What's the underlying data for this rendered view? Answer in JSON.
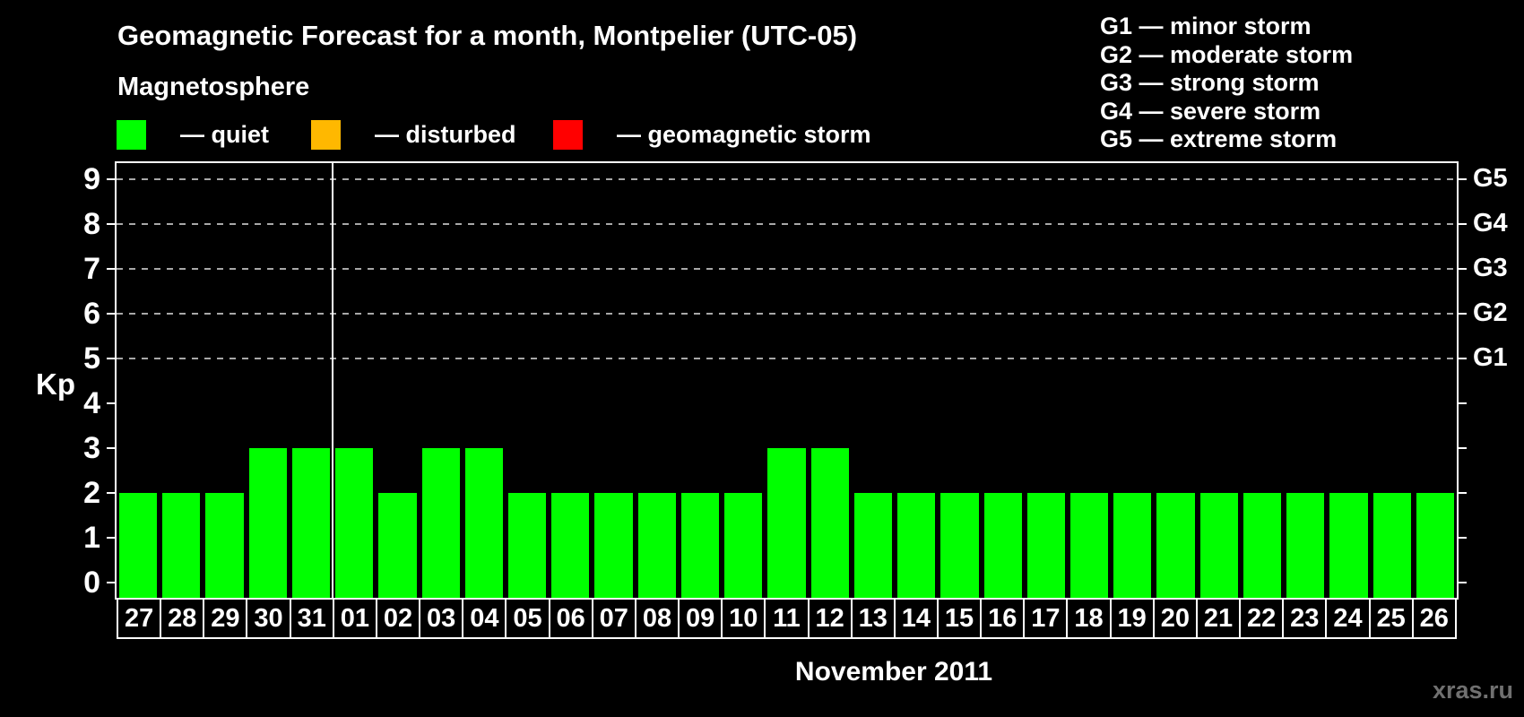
{
  "title": "Geomagnetic Forecast for a month, Montpelier (UTC-05)",
  "subtitle": "Magnetosphere",
  "legend": {
    "items": [
      {
        "name": "quiet",
        "label": "— quiet",
        "color": "#00ff00"
      },
      {
        "name": "disturbed",
        "label": "— disturbed",
        "color": "#ffb800"
      },
      {
        "name": "geomagnetic-storm",
        "label": "— geomagnetic storm",
        "color": "#ff0000"
      }
    ]
  },
  "g_legend": {
    "items": [
      "G1 — minor storm",
      "G2 — moderate storm",
      "G3 — strong storm",
      "G4 — severe storm",
      "G5 — extreme storm"
    ]
  },
  "axis": {
    "kp_label": "Kp",
    "month_label": "November 2011",
    "y_ticks": [
      0,
      1,
      2,
      3,
      4,
      5,
      6,
      7,
      8,
      9
    ]
  },
  "watermark": "xras.ru",
  "colors": {
    "background": "#000000",
    "text": "#ffffff",
    "bar_quiet": "#00ff00",
    "bar_disturbed": "#ffb800",
    "bar_storm": "#ff0000",
    "gridline": "#a8a8a8",
    "border": "#ffffff",
    "watermark": "#707070"
  },
  "chart_data": {
    "type": "bar",
    "title": "Geomagnetic Forecast for a month, Montpelier (UTC-05)",
    "xlabel": "November 2011",
    "ylabel": "Kp",
    "ylim": [
      0,
      9
    ],
    "grid": "dashed horizontal lines at Kp 5-9 only",
    "legend_position": "top-left (status colors) and top-right (G scale)",
    "categories": [
      "27",
      "28",
      "29",
      "30",
      "31",
      "01",
      "02",
      "03",
      "04",
      "05",
      "06",
      "07",
      "08",
      "09",
      "10",
      "11",
      "12",
      "13",
      "14",
      "15",
      "16",
      "17",
      "18",
      "19",
      "20",
      "21",
      "22",
      "23",
      "24",
      "25",
      "26"
    ],
    "values": [
      2,
      2,
      2,
      3,
      3,
      3,
      2,
      3,
      3,
      2,
      2,
      2,
      2,
      2,
      2,
      3,
      3,
      2,
      2,
      2,
      2,
      2,
      2,
      2,
      2,
      2,
      2,
      2,
      2,
      2,
      2
    ],
    "bar_color": "#00ff00",
    "month_separator_after_index": 4,
    "right_axis_labels": [
      {
        "label": "G1",
        "kp": 5
      },
      {
        "label": "G2",
        "kp": 6
      },
      {
        "label": "G3",
        "kp": 7
      },
      {
        "label": "G4",
        "kp": 8
      },
      {
        "label": "G5",
        "kp": 9
      }
    ]
  }
}
